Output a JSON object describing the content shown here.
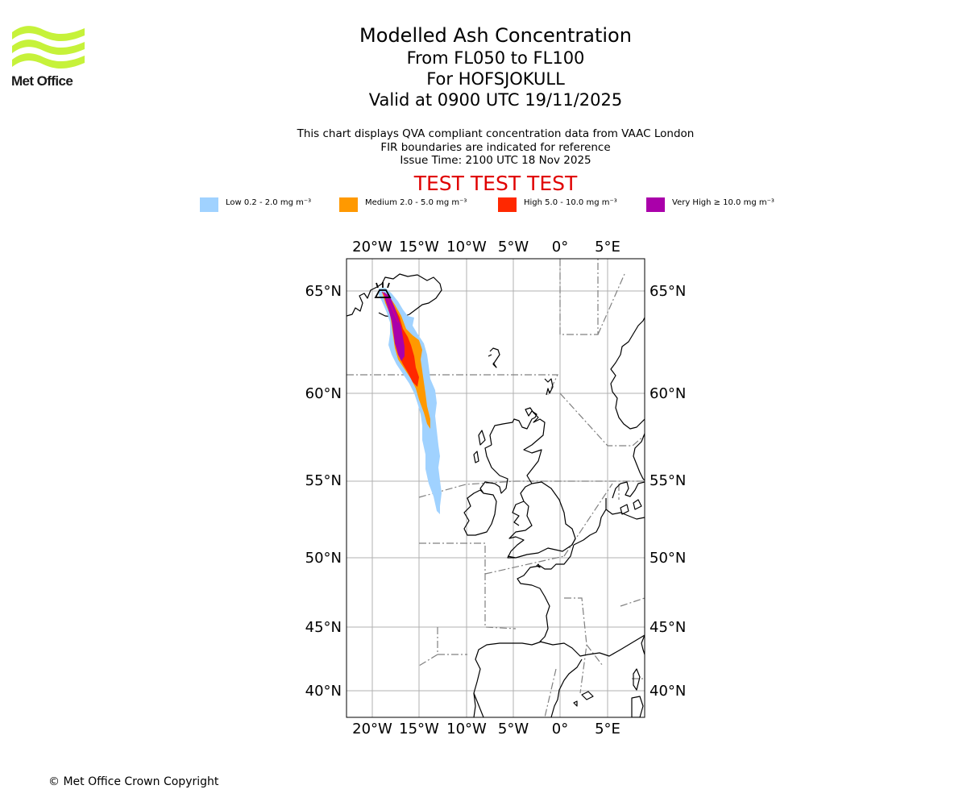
{
  "logo": {
    "text": "Met Office",
    "colors": {
      "waves": "#c6f23a",
      "text": "#1a1a1a"
    }
  },
  "header": {
    "title": "Modelled Ash Concentration",
    "levels": "From FL050 to FL100",
    "volcano": "For HOFSJOKULL",
    "valid": "Valid at 0900 UTC 19/11/2025"
  },
  "info": {
    "line1": "This chart displays QVA compliant concentration data from VAAC London",
    "line2": "FIR boundaries are indicated for reference",
    "line3": "Issue Time: 2100 UTC 18 Nov 2025"
  },
  "test_banner": "TEST TEST TEST",
  "legend": [
    {
      "key": "low",
      "label": "Low 0.2 - 2.0 mg m⁻³",
      "color": "#a0d2ff"
    },
    {
      "key": "medium",
      "label": "Medium 2.0 - 5.0 mg m⁻³",
      "color": "#ff9900"
    },
    {
      "key": "high",
      "label": "High 5.0 - 10.0 mg m⁻³",
      "color": "#ff2800"
    },
    {
      "key": "veryhigh",
      "label": "Very High  ≥  10.0 mg m⁻³",
      "color": "#aa00aa"
    }
  ],
  "map": {
    "extent": {
      "lon": [
        -22.8,
        8.6
      ],
      "lat": [
        38.3,
        66.5
      ]
    },
    "lon_ticks": [
      "20°W",
      "15°W",
      "10°W",
      "5°W",
      "0°",
      "5°E"
    ],
    "lat_ticks": [
      "65°N",
      "60°N",
      "55°N",
      "50°N",
      "45°N",
      "40°N"
    ],
    "grid": true,
    "volcano_marker": "volcano-icon",
    "colors": {
      "grid": "#b0b0b0",
      "coast": "#000000",
      "fir": "#808080"
    }
  },
  "copyright": "© Met Office Crown Copyright"
}
